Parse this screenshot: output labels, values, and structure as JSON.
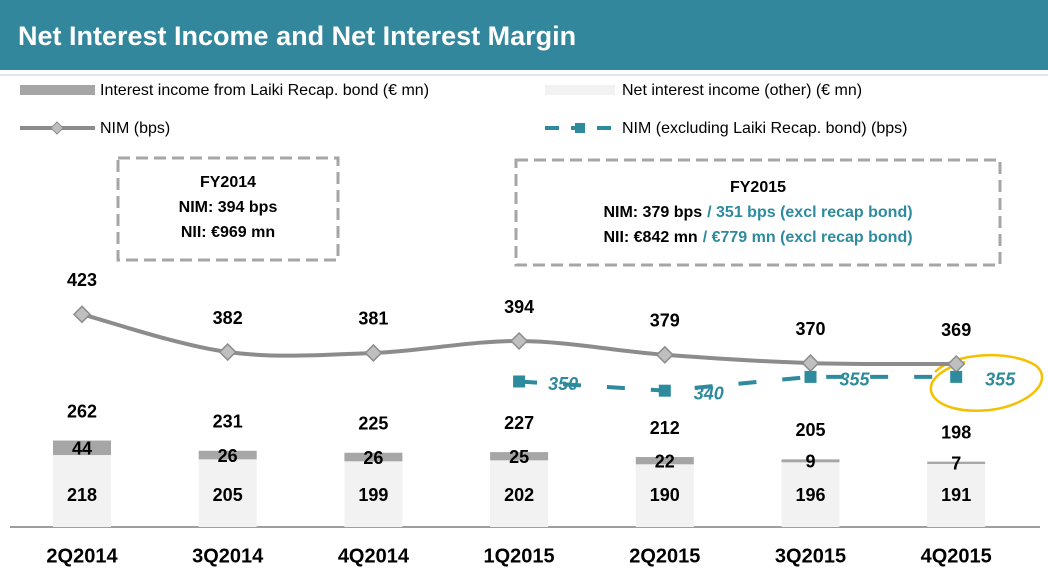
{
  "chart_data": {
    "type": "bar",
    "title": "Net Interest Income and Net Interest Margin",
    "categories": [
      "2Q2014",
      "3Q2014",
      "4Q2014",
      "1Q2015",
      "2Q2015",
      "3Q2015",
      "4Q2015"
    ],
    "series": [
      {
        "name": "Net interest income (other) (€ mn)",
        "color": "#f2f2f2",
        "values": [
          218,
          205,
          199,
          202,
          190,
          196,
          191
        ]
      },
      {
        "name": "Interest income from Laiki Recap. bond (€ mn)",
        "color": "#a6a6a6",
        "values": [
          44,
          26,
          26,
          25,
          22,
          9,
          7
        ]
      }
    ],
    "totals": [
      262,
      231,
      225,
      227,
      212,
      205,
      198
    ],
    "lines": [
      {
        "name": "NIM (bps)",
        "color": "#8c8c8c",
        "values": [
          423,
          382,
          381,
          394,
          379,
          370,
          369
        ]
      },
      {
        "name": "NIM (excluding Laiki Recap. bond) (bps)",
        "color": "#2e8b9e",
        "dashed": true,
        "values": [
          null,
          null,
          null,
          350,
          340,
          355,
          355
        ]
      }
    ],
    "annotations": [
      {
        "title": "FY2014",
        "lines": [
          {
            "text": "NIM: 394 bps"
          },
          {
            "text": "NII: €969 mn"
          }
        ]
      },
      {
        "title": "FY2015",
        "lines": [
          {
            "text": "NIM: 379 bps",
            "note": "/ 351 bps (excl recap bond)"
          },
          {
            "text": "NII: €842 mn",
            "note": "/ €779 mn  (excl recap bond)"
          }
        ]
      }
    ]
  }
}
